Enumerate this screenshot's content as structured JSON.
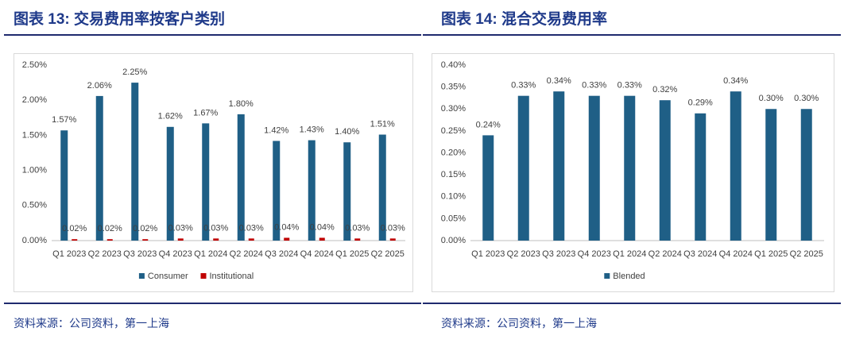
{
  "chart_data": [
    {
      "type": "bar",
      "title": "图表 13: 交易费用率按客户类别",
      "categories": [
        "Q1 2023",
        "Q2 2023",
        "Q3 2023",
        "Q4 2023",
        "Q1 2024",
        "Q2 2024",
        "Q3 2024",
        "Q4 2024",
        "Q1 2025",
        "Q2 2025"
      ],
      "series": [
        {
          "name": "Consumer",
          "color": "#1f5f86",
          "values": [
            1.57,
            2.06,
            2.25,
            1.62,
            1.67,
            1.8,
            1.42,
            1.43,
            1.4,
            1.51
          ],
          "value_labels": [
            "1.57%",
            "2.06%",
            "2.25%",
            "1.62%",
            "1.67%",
            "1.80%",
            "1.42%",
            "1.43%",
            "1.40%",
            "1.51%"
          ]
        },
        {
          "name": "Institutional",
          "color": "#c00000",
          "values": [
            0.02,
            0.02,
            0.02,
            0.03,
            0.03,
            0.03,
            0.04,
            0.04,
            0.03,
            0.03
          ],
          "value_labels": [
            "0.02%",
            "0.02%",
            "0.02%",
            "0.03%",
            "0.03%",
            "0.03%",
            "0.04%",
            "0.04%",
            "0.03%",
            "0.03%"
          ]
        }
      ],
      "ylim": [
        0,
        2.5
      ],
      "yticks": [
        {
          "value": 0,
          "label": "0.00%"
        },
        {
          "value": 0.5,
          "label": "0.50%"
        },
        {
          "value": 1,
          "label": "1.00%"
        },
        {
          "value": 1.5,
          "label": "1.50%"
        },
        {
          "value": 2,
          "label": "2.00%"
        },
        {
          "value": 2.5,
          "label": "2.50%"
        }
      ],
      "grid": false,
      "legend": "bottom",
      "note": "资料来源：公司资料，第一上海"
    },
    {
      "type": "bar",
      "title": "图表 14: 混合交易费用率",
      "categories": [
        "Q1 2023",
        "Q2 2023",
        "Q3 2023",
        "Q4 2023",
        "Q1 2024",
        "Q2 2024",
        "Q3 2024",
        "Q4 2024",
        "Q1 2025",
        "Q2 2025"
      ],
      "series": [
        {
          "name": "Blended",
          "color": "#1f5f86",
          "values": [
            0.24,
            0.33,
            0.34,
            0.33,
            0.33,
            0.32,
            0.29,
            0.34,
            0.3,
            0.3
          ],
          "value_labels": [
            "0.24%",
            "0.33%",
            "0.34%",
            "0.33%",
            "0.33%",
            "0.32%",
            "0.29%",
            "0.34%",
            "0.30%",
            "0.30%"
          ]
        }
      ],
      "ylim": [
        0,
        0.4
      ],
      "yticks": [
        {
          "value": 0,
          "label": "0.00%"
        },
        {
          "value": 0.05,
          "label": "0.05%"
        },
        {
          "value": 0.1,
          "label": "0.10%"
        },
        {
          "value": 0.15,
          "label": "0.15%"
        },
        {
          "value": 0.2,
          "label": "0.20%"
        },
        {
          "value": 0.25,
          "label": "0.25%"
        },
        {
          "value": 0.3,
          "label": "0.30%"
        },
        {
          "value": 0.35,
          "label": "0.35%"
        },
        {
          "value": 0.4,
          "label": "0.40%"
        }
      ],
      "grid": false,
      "legend": "bottom",
      "note": "资料来源：公司资料，第一上海"
    }
  ]
}
